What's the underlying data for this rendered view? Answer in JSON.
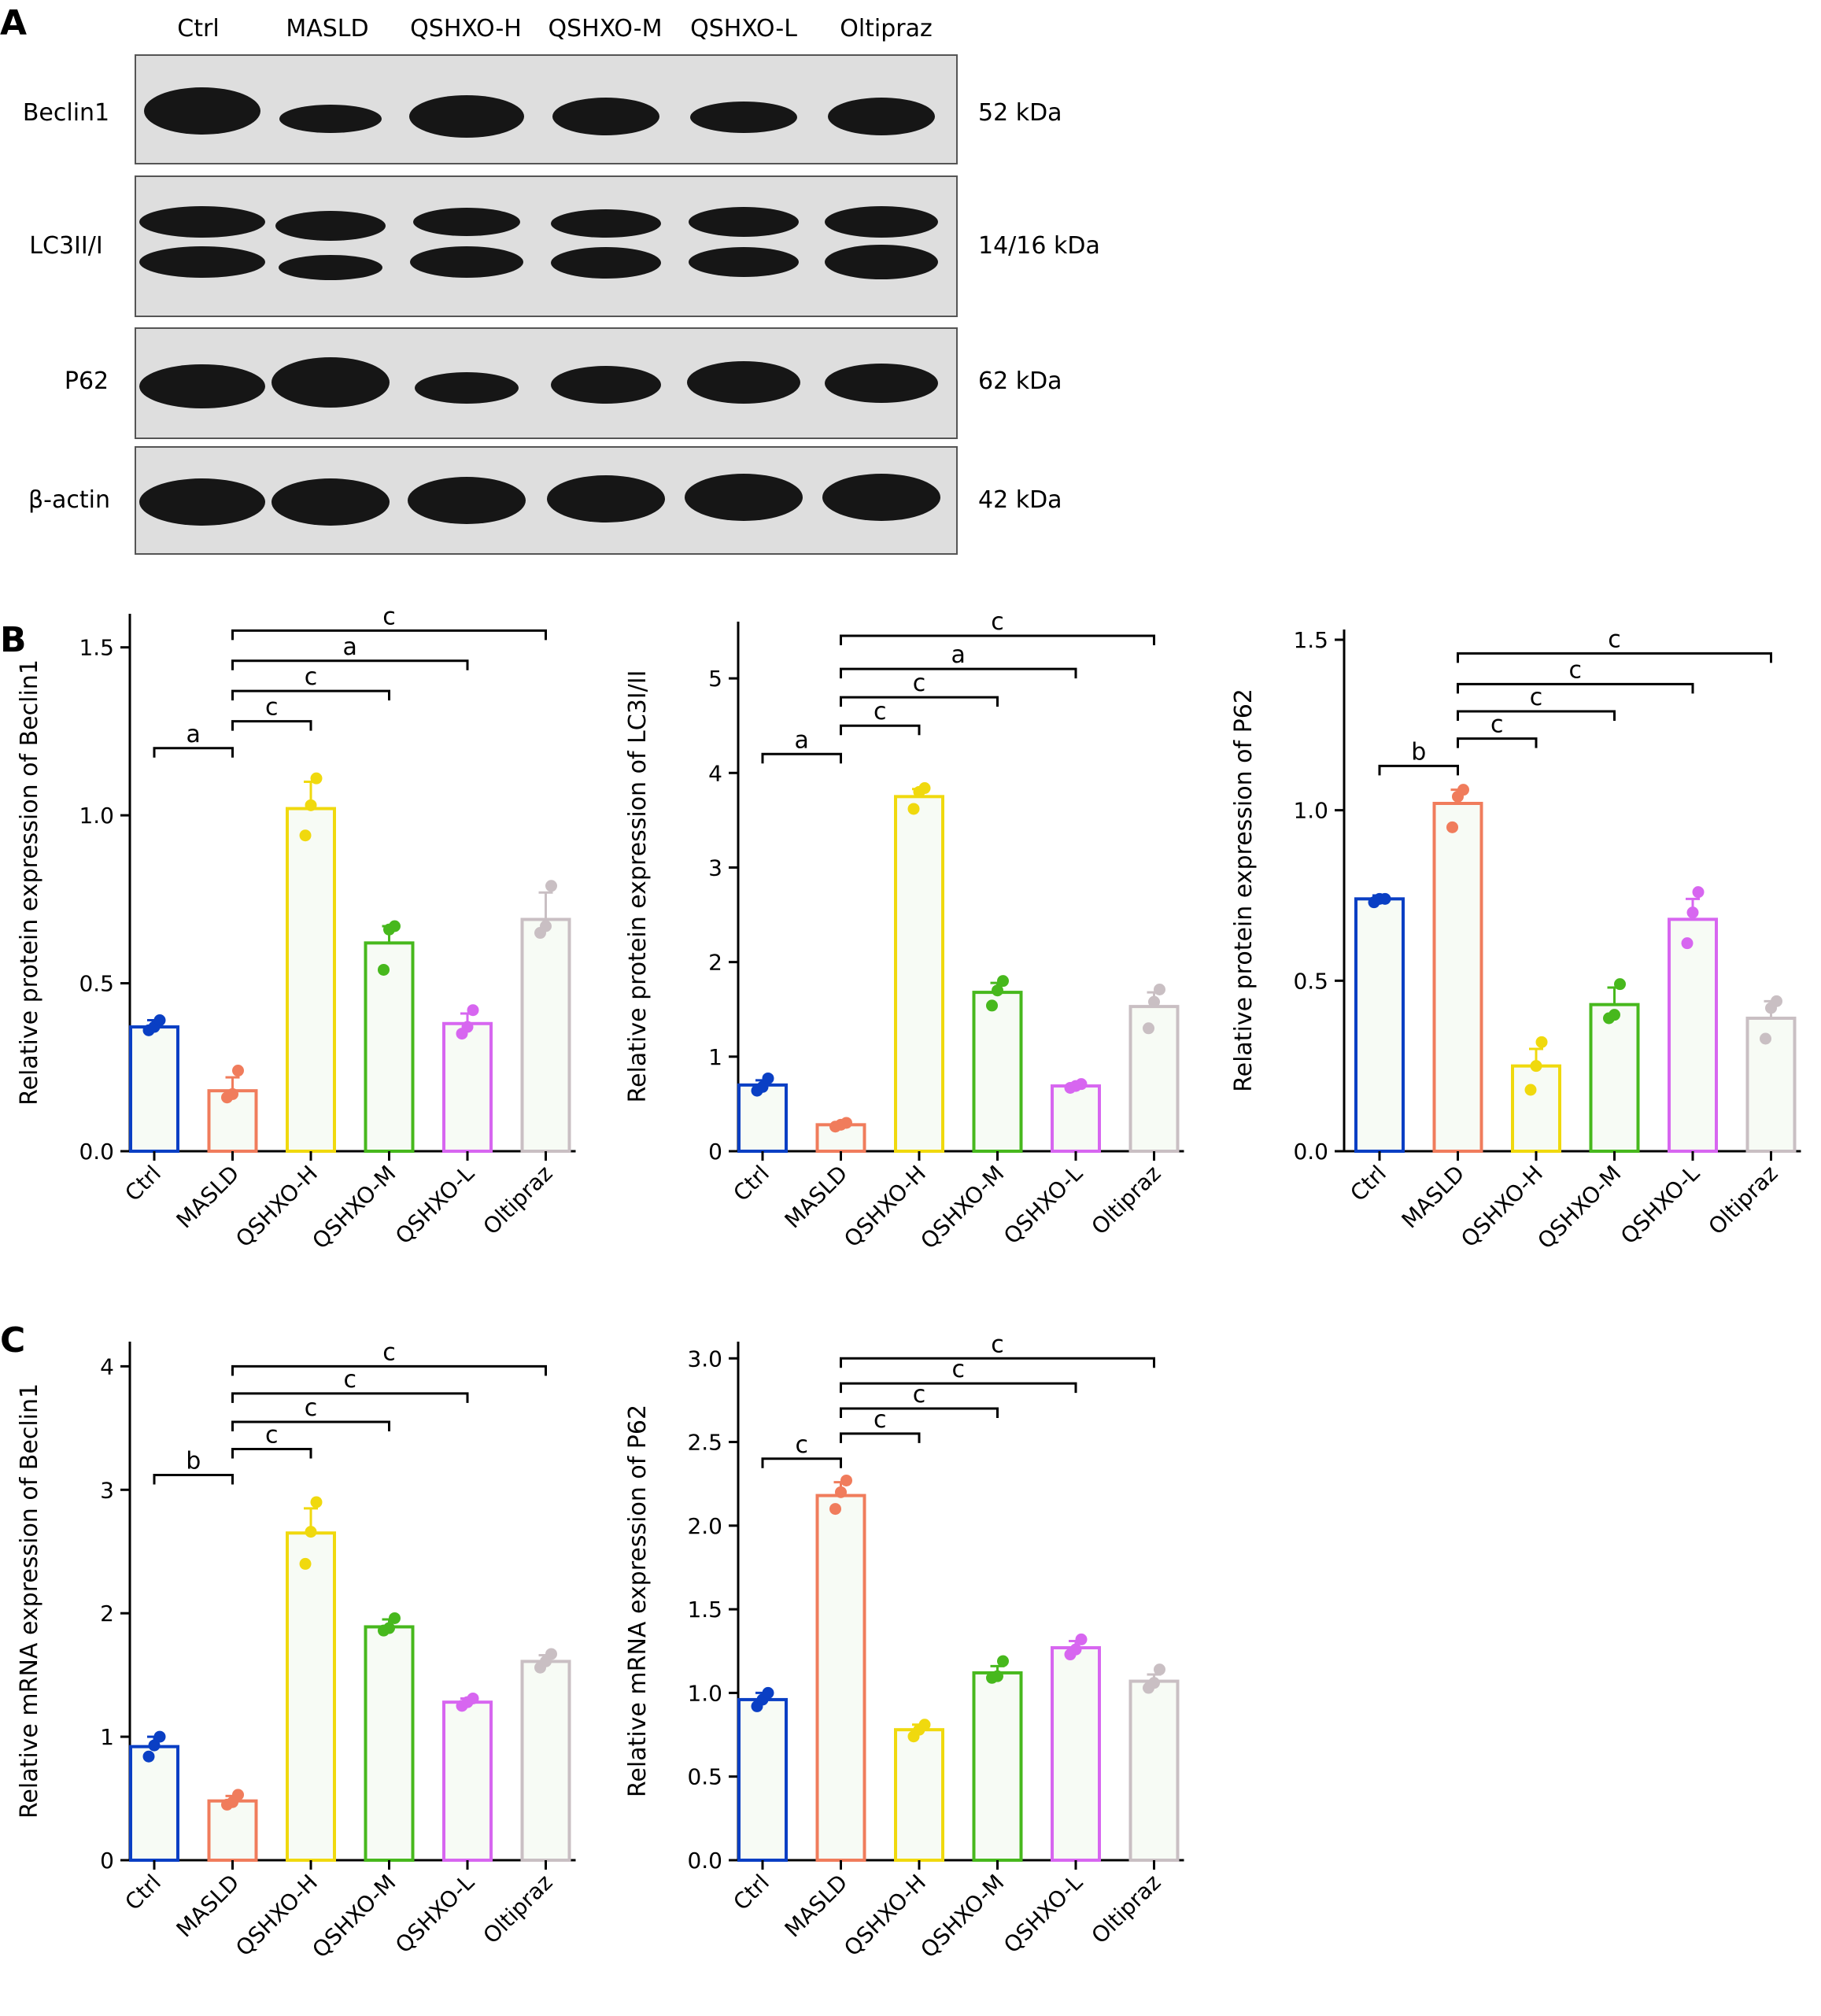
{
  "panel_letters": [
    "A",
    "B",
    "C"
  ],
  "colors": {
    "Ctrl": "#0a3fc4",
    "MASLD": "#f07c5c",
    "QSHXO-H": "#f0d90e",
    "QSHXO-M": "#47b81d",
    "QSHXO-L": "#d766f0",
    "Oltipraz": "#c9bfc3",
    "bar_fill": "#f7fbf5",
    "blot_bg": "#dedede",
    "band": "#161616"
  },
  "blot": {
    "lanes": [
      "Ctrl",
      "MASLD",
      "QSHXO-H",
      "QSHXO-M",
      "QSHXO-L",
      "Oltipraz"
    ],
    "rows": [
      {
        "label": "Beclin1",
        "kda": "52 kDa"
      },
      {
        "label": "LC3II/I",
        "kda": "14/16 kDa"
      },
      {
        "label": "P62",
        "kda": "62 kDa"
      },
      {
        "label": "β-actin",
        "kda": "42 kDa"
      }
    ]
  },
  "chart_data": [
    {
      "type": "bar",
      "panel": "B",
      "categories": [
        "Ctrl",
        "MASLD",
        "QSHXO-H",
        "QSHXO-M",
        "QSHXO-L",
        "Oltipraz"
      ],
      "values": [
        0.37,
        0.18,
        1.02,
        0.62,
        0.38,
        0.69
      ],
      "errors": [
        0.02,
        0.04,
        0.08,
        0.05,
        0.03,
        0.08
      ],
      "points": [
        [
          0.36,
          0.37,
          0.39
        ],
        [
          0.16,
          0.17,
          0.24
        ],
        [
          0.94,
          1.03,
          1.11
        ],
        [
          0.54,
          0.66,
          0.67
        ],
        [
          0.35,
          0.37,
          0.42
        ],
        [
          0.65,
          0.67,
          0.79
        ]
      ],
      "ylabel": "Relative protein expression of Beclin1",
      "xlabel": "",
      "ylim": [
        0,
        1.6
      ],
      "yticks": [
        0.0,
        0.5,
        1.0,
        1.5
      ],
      "ytick_labels": [
        "0.0",
        "0.5",
        "1.0",
        "1.5"
      ],
      "significance": [
        {
          "from": 0,
          "to": 1,
          "label": "a",
          "y": 1.2
        },
        {
          "from": 1,
          "to": 2,
          "label": "c",
          "y": 1.28
        },
        {
          "from": 1,
          "to": 3,
          "label": "c",
          "y": 1.37
        },
        {
          "from": 1,
          "to": 4,
          "label": "a",
          "y": 1.46
        },
        {
          "from": 1,
          "to": 5,
          "label": "c",
          "y": 1.55
        }
      ]
    },
    {
      "type": "bar",
      "panel": "B",
      "categories": [
        "Ctrl",
        "MASLD",
        "QSHXO-H",
        "QSHXO-M",
        "QSHXO-L",
        "Oltipraz"
      ],
      "values": [
        0.7,
        0.28,
        3.75,
        1.68,
        0.69,
        1.53
      ],
      "errors": [
        0.05,
        0.02,
        0.08,
        0.1,
        0.02,
        0.15
      ],
      "points": [
        [
          0.64,
          0.68,
          0.77
        ],
        [
          0.26,
          0.28,
          0.3
        ],
        [
          3.62,
          3.8,
          3.84
        ],
        [
          1.54,
          1.7,
          1.8
        ],
        [
          0.67,
          0.69,
          0.71
        ],
        [
          1.3,
          1.58,
          1.71
        ]
      ],
      "ylabel": "Relative protein expression of LC3I/II",
      "xlabel": "",
      "ylim": [
        0,
        5.6
      ],
      "yticks": [
        0,
        1,
        2,
        3,
        4,
        5
      ],
      "ytick_labels": [
        "0",
        "1",
        "2",
        "3",
        "4",
        "5"
      ],
      "significance": [
        {
          "from": 0,
          "to": 1,
          "label": "a",
          "y": 4.2
        },
        {
          "from": 1,
          "to": 2,
          "label": "c",
          "y": 4.5
        },
        {
          "from": 1,
          "to": 3,
          "label": "c",
          "y": 4.8
        },
        {
          "from": 1,
          "to": 4,
          "label": "a",
          "y": 5.1
        },
        {
          "from": 1,
          "to": 5,
          "label": "c",
          "y": 5.45
        }
      ]
    },
    {
      "type": "bar",
      "panel": "B",
      "categories": [
        "Ctrl",
        "MASLD",
        "QSHXO-H",
        "QSHXO-M",
        "QSHXO-L",
        "Oltipraz"
      ],
      "values": [
        0.74,
        1.02,
        0.25,
        0.43,
        0.68,
        0.39
      ],
      "errors": [
        0.01,
        0.04,
        0.05,
        0.05,
        0.06,
        0.05
      ],
      "points": [
        [
          0.73,
          0.74,
          0.74
        ],
        [
          0.95,
          1.04,
          1.06
        ],
        [
          0.18,
          0.25,
          0.32
        ],
        [
          0.39,
          0.4,
          0.49
        ],
        [
          0.61,
          0.7,
          0.76
        ],
        [
          0.33,
          0.42,
          0.44
        ]
      ],
      "ylabel": "Relative protein expression of P62",
      "xlabel": "",
      "ylim": [
        0,
        1.53
      ],
      "yticks": [
        0.0,
        0.5,
        1.0,
        1.5
      ],
      "ytick_labels": [
        "0.0",
        "0.5",
        "1.0",
        "1.5"
      ],
      "significance": [
        {
          "from": 0,
          "to": 1,
          "label": "b",
          "y": 1.13
        },
        {
          "from": 1,
          "to": 2,
          "label": "c",
          "y": 1.21
        },
        {
          "from": 1,
          "to": 3,
          "label": "c",
          "y": 1.29
        },
        {
          "from": 1,
          "to": 4,
          "label": "c",
          "y": 1.37
        },
        {
          "from": 1,
          "to": 5,
          "label": "c",
          "y": 1.46
        }
      ]
    },
    {
      "type": "bar",
      "panel": "C",
      "categories": [
        "Ctrl",
        "MASLD",
        "QSHXO-H",
        "QSHXO-M",
        "QSHXO-L",
        "Oltipraz"
      ],
      "values": [
        0.92,
        0.48,
        2.65,
        1.89,
        1.28,
        1.61
      ],
      "errors": [
        0.08,
        0.04,
        0.2,
        0.06,
        0.03,
        0.05
      ],
      "points": [
        [
          0.84,
          0.93,
          1.0
        ],
        [
          0.45,
          0.47,
          0.53
        ],
        [
          2.4,
          2.66,
          2.9
        ],
        [
          1.86,
          1.88,
          1.96
        ],
        [
          1.25,
          1.28,
          1.31
        ],
        [
          1.56,
          1.61,
          1.67
        ]
      ],
      "ylabel": "Relative mRNA expression of Beclin1",
      "xlabel": "",
      "ylim": [
        0,
        4.2
      ],
      "yticks": [
        0,
        1,
        2,
        3,
        4
      ],
      "ytick_labels": [
        "0",
        "1",
        "2",
        "3",
        "4"
      ],
      "significance": [
        {
          "from": 0,
          "to": 1,
          "label": "b",
          "y": 3.12
        },
        {
          "from": 1,
          "to": 2,
          "label": "c",
          "y": 3.33
        },
        {
          "from": 1,
          "to": 3,
          "label": "c",
          "y": 3.55
        },
        {
          "from": 1,
          "to": 4,
          "label": "c",
          "y": 3.78
        },
        {
          "from": 1,
          "to": 5,
          "label": "c",
          "y": 4.0
        }
      ]
    },
    {
      "type": "bar",
      "panel": "C",
      "categories": [
        "Ctrl",
        "MASLD",
        "QSHXO-H",
        "QSHXO-M",
        "QSHXO-L",
        "Oltipraz"
      ],
      "values": [
        0.96,
        2.18,
        0.78,
        1.12,
        1.27,
        1.07
      ],
      "errors": [
        0.04,
        0.08,
        0.03,
        0.04,
        0.04,
        0.04
      ],
      "points": [
        [
          0.92,
          0.96,
          1.0
        ],
        [
          2.1,
          2.2,
          2.27
        ],
        [
          0.74,
          0.78,
          0.81
        ],
        [
          1.09,
          1.1,
          1.19
        ],
        [
          1.23,
          1.26,
          1.32
        ],
        [
          1.03,
          1.06,
          1.14
        ]
      ],
      "ylabel": "Relative mRNA expression of P62",
      "xlabel": "",
      "ylim": [
        0,
        3.1
      ],
      "yticks": [
        0.0,
        0.5,
        1.0,
        1.5,
        2.0,
        2.5,
        3.0
      ],
      "ytick_labels": [
        "0.0",
        "0.5",
        "1.0",
        "1.5",
        "2.0",
        "2.5",
        "3.0"
      ],
      "significance": [
        {
          "from": 0,
          "to": 1,
          "label": "c",
          "y": 2.4
        },
        {
          "from": 1,
          "to": 2,
          "label": "c",
          "y": 2.55
        },
        {
          "from": 1,
          "to": 3,
          "label": "c",
          "y": 2.7
        },
        {
          "from": 1,
          "to": 4,
          "label": "c",
          "y": 2.85
        },
        {
          "from": 1,
          "to": 5,
          "label": "c",
          "y": 3.0
        }
      ]
    }
  ]
}
